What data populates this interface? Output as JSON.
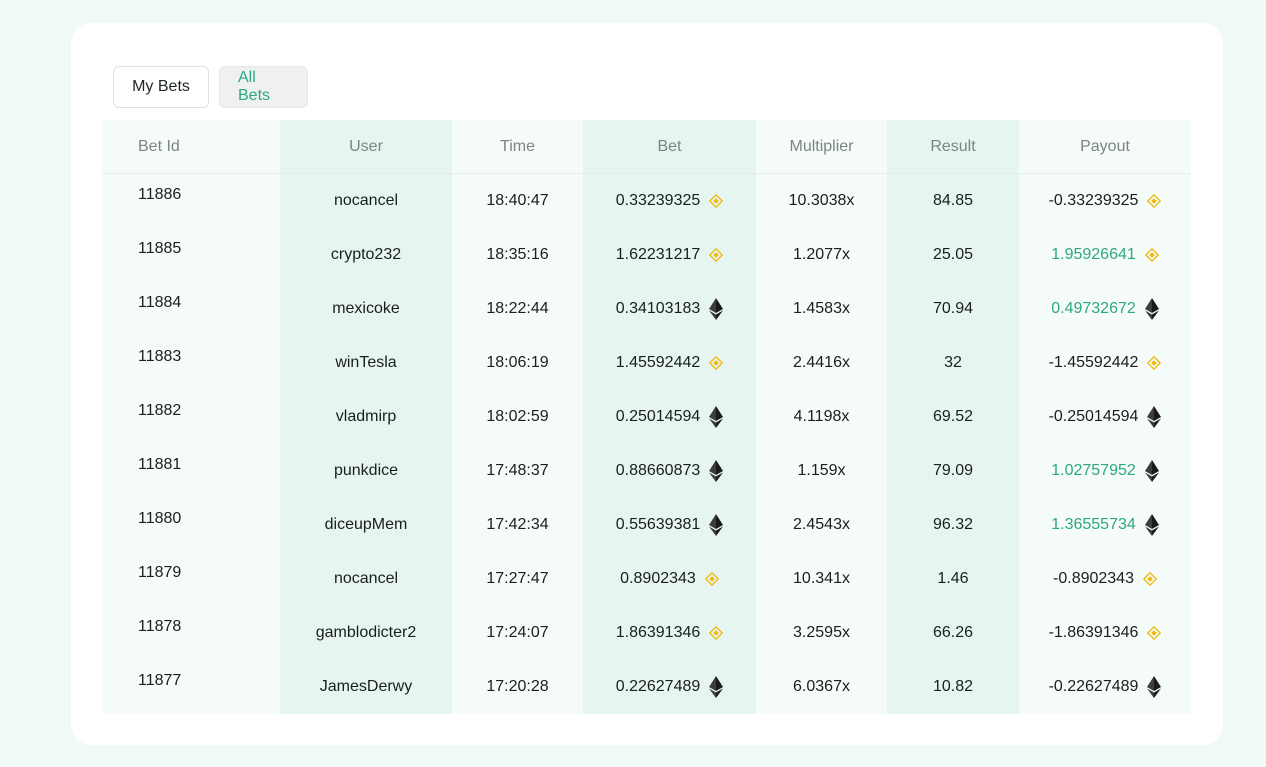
{
  "tabs": {
    "my_bets": "My Bets",
    "all_bets": "All Bets"
  },
  "table": {
    "headers": [
      "Bet Id",
      "User",
      "Time",
      "Bet",
      "Multiplier",
      "Result",
      "Payout"
    ],
    "rows": [
      {
        "id": "11886",
        "user": "nocancel",
        "time": "18:40:47",
        "bet": "0.33239325",
        "coin": "bnb-icon",
        "multiplier": "10.3038x",
        "result": "84.85",
        "payout": "-0.33239325",
        "win": false
      },
      {
        "id": "11885",
        "user": "crypto232",
        "time": "18:35:16",
        "bet": "1.62231217",
        "coin": "bnb-icon",
        "multiplier": "1.2077x",
        "result": "25.05",
        "payout": "1.95926641",
        "win": true
      },
      {
        "id": "11884",
        "user": "mexicoke",
        "time": "18:22:44",
        "bet": "0.34103183",
        "coin": "eth-icon",
        "multiplier": "1.4583x",
        "result": "70.94",
        "payout": "0.49732672",
        "win": true
      },
      {
        "id": "11883",
        "user": "winTesla",
        "time": "18:06:19",
        "bet": "1.45592442",
        "coin": "bnb-icon",
        "multiplier": "2.4416x",
        "result": "32",
        "payout": "-1.45592442",
        "win": false
      },
      {
        "id": "11882",
        "user": "vladmirp",
        "time": "18:02:59",
        "bet": "0.25014594",
        "coin": "eth-icon",
        "multiplier": "4.1198x",
        "result": "69.52",
        "payout": "-0.25014594",
        "win": false
      },
      {
        "id": "11881",
        "user": "punkdice",
        "time": "17:48:37",
        "bet": "0.88660873",
        "coin": "eth-icon",
        "multiplier": "1.159x",
        "result": "79.09",
        "payout": "1.02757952",
        "win": true
      },
      {
        "id": "11880",
        "user": "diceupMem",
        "time": "17:42:34",
        "bet": "0.55639381",
        "coin": "eth-icon",
        "multiplier": "2.4543x",
        "result": "96.32",
        "payout": "1.36555734",
        "win": true
      },
      {
        "id": "11879",
        "user": "nocancel",
        "time": "17:27:47",
        "bet": "0.8902343",
        "coin": "bnb-icon",
        "multiplier": "10.341x",
        "result": "1.46",
        "payout": "-0.8902343",
        "win": false
      },
      {
        "id": "11878",
        "user": "gamblodicter2",
        "time": "17:24:07",
        "bet": "1.86391346",
        "coin": "bnb-icon",
        "multiplier": "3.2595x",
        "result": "66.26",
        "payout": "-1.86391346",
        "win": false
      },
      {
        "id": "11877",
        "user": "JamesDerwy",
        "time": "17:20:28",
        "bet": "0.22627489",
        "coin": "eth-icon",
        "multiplier": "6.0367x",
        "result": "10.82",
        "payout": "-0.22627489",
        "win": false
      }
    ]
  },
  "colors": {
    "accent": "#2fa784",
    "bnb": "#f0b90b",
    "eth": "#3c3c3d"
  }
}
